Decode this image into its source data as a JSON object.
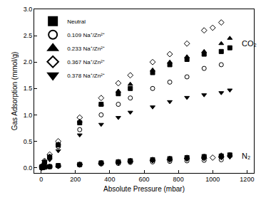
{
  "chart_data": {
    "type": "scatter",
    "x_label": "Absolute Pressure (mbar)",
    "y_label": "Gas Adsorption (mmol/g)",
    "xlim": [
      -40,
      1240
    ],
    "xticks": [
      0,
      200,
      400,
      600,
      800,
      1000,
      1200
    ],
    "ylim": [
      -0.1,
      3.0
    ],
    "yticks": [
      {
        "value": 0,
        "label": "0.0"
      },
      0.5,
      {
        "value": 1,
        "label": "1.0"
      },
      1.5,
      {
        "value": 2,
        "label": "2.0"
      },
      2.5,
      {
        "value": 3,
        "label": "3.0"
      }
    ],
    "grid": false,
    "legend": "top-left",
    "annotations": [
      {
        "text": "CO₂",
        "x": 1160,
        "y": 2.35
      },
      {
        "text": "N₂",
        "x": 1160,
        "y": 0.22
      }
    ],
    "series": [
      {
        "name": "Neutral",
        "color": "#000000",
        "marker": "square",
        "x": [
          5,
          20,
          50,
          100,
          225,
          350,
          450,
          520,
          650,
          750,
          850,
          950,
          1050,
          1100
        ],
        "values": [
          0.02,
          0.1,
          0.2,
          0.43,
          0.85,
          1.2,
          1.4,
          1.5,
          1.8,
          1.95,
          2.05,
          2.15,
          2.2,
          2.27
        ]
      },
      {
        "name": "0.109 Na⁺/Zn²⁺",
        "color": "#000000",
        "marker": "circle-open",
        "x": [
          5,
          20,
          50,
          100,
          225,
          350,
          450,
          520,
          650,
          750,
          850,
          950,
          1050
        ],
        "values": [
          0.02,
          0.08,
          0.18,
          0.4,
          0.72,
          1.0,
          1.2,
          1.32,
          1.5,
          1.62,
          1.72,
          1.88,
          1.95
        ]
      },
      {
        "name": "0.233 Na⁺/Zn²⁺",
        "color": "#000000",
        "marker": "triangle-up",
        "x": [
          5,
          20,
          50,
          100,
          225,
          350,
          450,
          520,
          650,
          750,
          850,
          950,
          1050,
          1100
        ],
        "values": [
          0.03,
          0.12,
          0.22,
          0.45,
          0.88,
          1.2,
          1.45,
          1.58,
          1.85,
          2.0,
          2.1,
          2.2,
          2.35,
          2.45
        ]
      },
      {
        "name": "0.367 Na⁺/Zn²⁺",
        "color": "#000000",
        "marker": "diamond-open",
        "x": [
          5,
          20,
          50,
          100,
          225,
          350,
          450,
          520,
          650,
          750,
          850,
          950,
          1000,
          1050
        ],
        "values": [
          0.03,
          0.13,
          0.25,
          0.5,
          0.95,
          1.32,
          1.6,
          1.75,
          2.0,
          2.15,
          2.35,
          2.6,
          2.65,
          2.75
        ]
      },
      {
        "name": "0.378 Na⁺/Zn²⁺",
        "color": "#000000",
        "marker": "triangle-down",
        "x": [
          5,
          20,
          50,
          100,
          225,
          350,
          450,
          520,
          650,
          750,
          850,
          950,
          1050,
          1100
        ],
        "values": [
          0.02,
          0.08,
          0.15,
          0.32,
          0.62,
          0.82,
          0.95,
          1.05,
          1.15,
          1.25,
          1.33,
          1.38,
          1.42,
          1.47
        ]
      },
      {
        "name": "Neutral",
        "color": "#000000",
        "marker": "square",
        "x": [
          5,
          20,
          50,
          100,
          225,
          350,
          450,
          520,
          650,
          750,
          850,
          950,
          1050,
          1100
        ],
        "values": [
          0.0,
          0.01,
          0.02,
          0.04,
          0.06,
          0.09,
          0.11,
          0.13,
          0.15,
          0.17,
          0.19,
          0.21,
          0.22,
          0.24
        ]
      },
      {
        "name": "0.109 Na⁺/Zn²⁺",
        "color": "#000000",
        "marker": "circle-open",
        "x": [
          5,
          20,
          50,
          100,
          225,
          350,
          450,
          520,
          650,
          750,
          850,
          950,
          1050
        ],
        "values": [
          0.0,
          0.01,
          0.02,
          0.03,
          0.05,
          0.07,
          0.08,
          0.1,
          0.11,
          0.12,
          0.13,
          0.14,
          0.15
        ]
      },
      {
        "name": "0.233 Na⁺/Zn²⁺",
        "color": "#000000",
        "marker": "triangle-up",
        "x": [
          5,
          20,
          50,
          100,
          225,
          350,
          450,
          520,
          650,
          750,
          850,
          950,
          1050,
          1100
        ],
        "values": [
          0.0,
          0.01,
          0.02,
          0.04,
          0.07,
          0.1,
          0.12,
          0.14,
          0.16,
          0.18,
          0.2,
          0.22,
          0.24,
          0.25
        ]
      },
      {
        "name": "0.367 Na⁺/Zn²⁺",
        "color": "#000000",
        "marker": "diamond-open",
        "x": [
          5,
          20,
          50,
          100,
          225,
          350,
          450,
          520,
          650,
          750,
          850,
          950,
          1000,
          1050
        ],
        "values": [
          0.0,
          0.01,
          0.02,
          0.03,
          0.06,
          0.08,
          0.1,
          0.12,
          0.14,
          0.15,
          0.17,
          0.18,
          0.19,
          0.2
        ]
      },
      {
        "name": "0.378 Na⁺/Zn²⁺",
        "color": "#000000",
        "marker": "triangle-down",
        "x": [
          5,
          20,
          50,
          100,
          225,
          350,
          450,
          520,
          650,
          750,
          850,
          950,
          1050,
          1100
        ],
        "values": [
          0.0,
          0.01,
          0.02,
          0.03,
          0.05,
          0.08,
          0.1,
          0.11,
          0.13,
          0.15,
          0.16,
          0.18,
          0.19,
          0.2
        ]
      }
    ]
  }
}
